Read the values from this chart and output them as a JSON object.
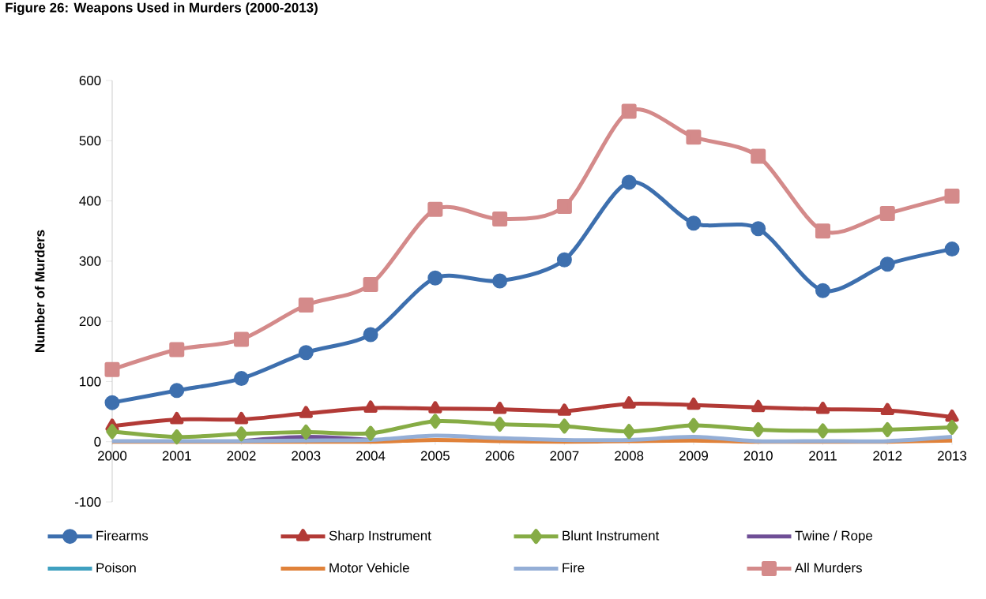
{
  "chart_data": {
    "type": "line",
    "title": "Figure 26: Weapons Used in Murders (2000-2013)",
    "ylabel": "Number of Murders",
    "categories": [
      "2000",
      "2001",
      "2002",
      "2003",
      "2004",
      "2005",
      "2006",
      "2007",
      "2008",
      "2009",
      "2010",
      "2011",
      "2012",
      "2013"
    ],
    "ylim": [
      -100,
      600
    ],
    "yticks": [
      -100,
      0,
      100,
      200,
      300,
      400,
      500,
      600
    ],
    "grid": false,
    "legend": "bottom",
    "line_style": "solid",
    "series": [
      {
        "name": "Firearms",
        "color": "#3d6fae",
        "marker": "circle",
        "values": [
          65,
          85,
          105,
          148,
          178,
          272,
          267,
          302,
          431,
          363,
          354,
          251,
          295,
          320
        ]
      },
      {
        "name": "Sharp Instrument",
        "color": "#b23a36",
        "marker": "triangle",
        "values": [
          26,
          37,
          37,
          47,
          56,
          55,
          54,
          51,
          63,
          61,
          57,
          54,
          52,
          41
        ]
      },
      {
        "name": "Blunt Instrument",
        "color": "#86ac45",
        "marker": "diamond",
        "values": [
          17,
          8,
          13,
          16,
          14,
          34,
          29,
          26,
          17,
          27,
          20,
          18,
          20,
          24
        ]
      },
      {
        "name": "Twine / Rope",
        "color": "#6f4f96",
        "marker": "none",
        "values": [
          null,
          null,
          1,
          8,
          3,
          null,
          null,
          null,
          null,
          null,
          null,
          null,
          null,
          null
        ]
      },
      {
        "name": "Poison",
        "color": "#3fa0c0",
        "marker": "none",
        "values": [
          null,
          null,
          null,
          null,
          null,
          null,
          null,
          null,
          null,
          null,
          null,
          null,
          null,
          null
        ]
      },
      {
        "name": "Motor Vehicle",
        "color": "#e0823a",
        "marker": "none",
        "values": [
          0,
          0,
          0,
          0,
          0,
          3,
          1,
          0,
          1,
          2,
          0,
          0,
          0,
          2
        ]
      },
      {
        "name": "Fire",
        "color": "#94aed6",
        "marker": "none",
        "values": [
          1,
          1,
          1,
          2,
          3,
          10,
          6,
          3,
          3,
          8,
          1,
          1,
          1,
          8
        ]
      },
      {
        "name": "All Murders",
        "color": "#d48a8a",
        "marker": "square",
        "values": [
          120,
          153,
          170,
          227,
          261,
          386,
          370,
          391,
          549,
          506,
          474,
          350,
          379,
          408
        ]
      }
    ]
  }
}
